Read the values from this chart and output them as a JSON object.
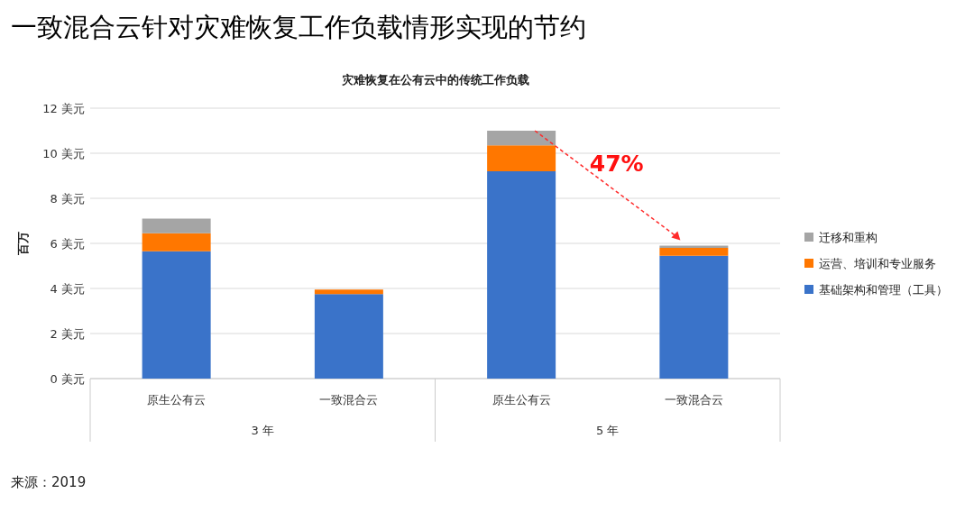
{
  "chart_data": {
    "type": "bar",
    "title": "一致混合云针对灾难恢复工作负载情形实现的节约",
    "subtitle": "灾难恢复在公有云中的传统工作负载",
    "ylabel": "百万",
    "categories": [
      "原生公有云",
      "一致混合云",
      "原生公有云",
      "一致混合云"
    ],
    "stacked": true,
    "series": [
      {
        "name": "基础架构和管理（工具）",
        "color": "#3a73c9",
        "values": [
          5.65,
          3.75,
          9.2,
          5.45
        ]
      },
      {
        "name": "运营、培训和专业服务",
        "color": "#ff7700",
        "values": [
          0.8,
          0.2,
          1.15,
          0.35
        ]
      },
      {
        "name": "迁移和重构",
        "color": "#a5a5a5",
        "values": [
          0.65,
          0.0,
          0.65,
          0.1
        ]
      }
    ],
    "ylim": [
      0,
      12
    ],
    "yticks": [
      {
        "value": 0,
        "label": "0 美元"
      },
      {
        "value": 2,
        "label": "2 美元"
      },
      {
        "value": 4,
        "label": "4 美元"
      },
      {
        "value": 6,
        "label": "6 美元"
      },
      {
        "value": 8,
        "label": "8 美元"
      },
      {
        "value": 10,
        "label": "10 美元"
      },
      {
        "value": 12,
        "label": "12 美元"
      }
    ],
    "grid": "y",
    "legend": "right",
    "annotations": [
      "47%",
      "3 年",
      "5 年",
      "来源：2019"
    ]
  }
}
